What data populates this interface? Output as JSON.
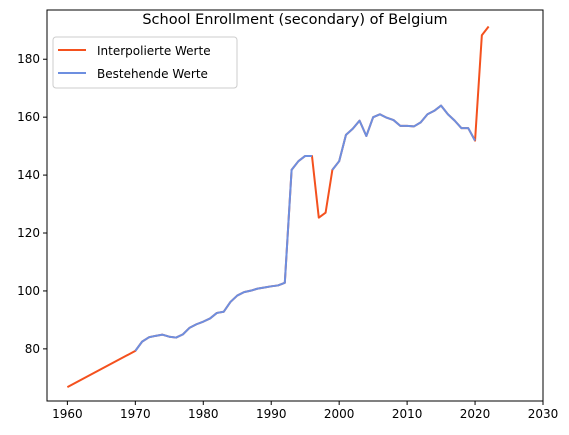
{
  "chart_data": {
    "type": "line",
    "title": "School Enrollment (secondary) of Belgium",
    "xlabel": "",
    "ylabel": "",
    "xlim": [
      1957,
      2030
    ],
    "ylim": [
      62,
      197
    ],
    "xticks": [
      1960,
      1970,
      1980,
      1990,
      2000,
      2010,
      2020,
      2030
    ],
    "yticks": [
      80,
      100,
      120,
      140,
      160,
      180
    ],
    "grid": false,
    "legend_position": "top-left",
    "series": [
      {
        "name": "Interpolierte Werte",
        "color": "#f4511e",
        "x": [
          1960,
          1970,
          1971,
          1972,
          1973,
          1974,
          1975,
          1976,
          1977,
          1978,
          1979,
          1980,
          1981,
          1982,
          1983,
          1984,
          1985,
          1986,
          1987,
          1988,
          1989,
          1990,
          1991,
          1992,
          1993,
          1994,
          1995,
          1996,
          1997,
          1998,
          1999,
          2000,
          2001,
          2002,
          2003,
          2004,
          2005,
          2006,
          2007,
          2008,
          2009,
          2010,
          2011,
          2012,
          2013,
          2014,
          2015,
          2016,
          2017,
          2018,
          2019,
          2020,
          2021,
          2022
        ],
        "y": [
          66.8,
          79.3,
          82.5,
          84.0,
          84.5,
          84.9,
          84.2,
          83.9,
          85.0,
          87.3,
          88.5,
          89.4,
          90.5,
          92.4,
          92.8,
          96.2,
          98.4,
          99.6,
          100.1,
          100.8,
          101.2,
          101.6,
          101.9,
          102.8,
          141.8,
          144.8,
          146.6,
          146.6,
          125.3,
          127.0,
          141.8,
          144.8,
          153.9,
          156.0,
          158.8,
          153.5,
          160.0,
          161.0,
          159.8,
          159.0,
          157.0,
          157.0,
          156.8,
          158.2,
          161.0,
          162.2,
          164.0,
          161.0,
          158.8,
          156.2,
          156.2,
          151.9,
          188.3,
          191.3
        ]
      },
      {
        "name": "Bestehende Werte",
        "color": "#6d8fe0",
        "segments": [
          {
            "x": [
              1970,
              1971,
              1972,
              1973,
              1974,
              1975,
              1976,
              1977,
              1978,
              1979,
              1980,
              1981,
              1982,
              1983,
              1984,
              1985,
              1986,
              1987,
              1988,
              1989,
              1990,
              1991,
              1992,
              1993,
              1994,
              1995,
              1996
            ],
            "y": [
              79.3,
              82.5,
              84.0,
              84.5,
              84.9,
              84.2,
              83.9,
              85.0,
              87.3,
              88.5,
              89.4,
              90.5,
              92.4,
              92.8,
              96.2,
              98.4,
              99.6,
              100.1,
              100.8,
              101.2,
              101.6,
              101.9,
              102.8,
              141.8,
              144.8,
              146.6,
              146.6
            ]
          },
          {
            "x": [
              1999,
              2000,
              2001,
              2002,
              2003,
              2004,
              2005,
              2006,
              2007,
              2008,
              2009,
              2010,
              2011,
              2012,
              2013,
              2014,
              2015,
              2016,
              2017,
              2018,
              2019,
              2020
            ],
            "y": [
              141.8,
              144.8,
              153.9,
              156.0,
              158.8,
              153.5,
              160.0,
              161.0,
              159.8,
              159.0,
              157.0,
              157.0,
              156.8,
              158.2,
              161.0,
              162.2,
              164.0,
              161.0,
              158.8,
              156.2,
              156.2,
              151.9
            ]
          }
        ]
      }
    ]
  }
}
